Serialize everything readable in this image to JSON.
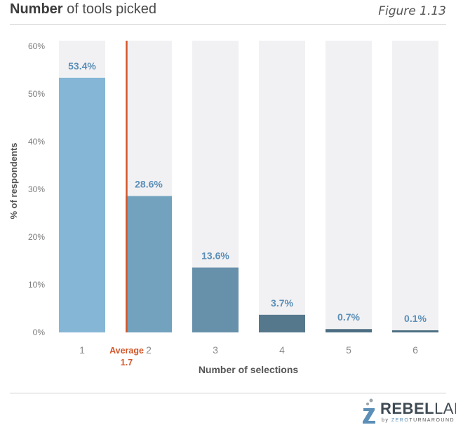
{
  "header": {
    "title_bold": "Number",
    "title_rest": " of tools picked",
    "figure_label": "Figure 1.13"
  },
  "chart_data": {
    "type": "bar",
    "categories": [
      "1",
      "2",
      "3",
      "4",
      "5",
      "6"
    ],
    "values": [
      53.4,
      28.6,
      13.6,
      3.7,
      0.7,
      0.1
    ],
    "value_labels": [
      "53.4%",
      "28.6%",
      "13.6%",
      "3.7%",
      "0.7%",
      "0.1%"
    ],
    "bar_colors": [
      "#85b6d6",
      "#72a2bd",
      "#6790aa",
      "#56788c",
      "#4d6e82",
      "#4d6e82"
    ],
    "label_color": "#5b8fb7",
    "background_bar_color": "#f1f1f3",
    "ylim": [
      0,
      60
    ],
    "yticks": [
      0,
      10,
      20,
      30,
      40,
      50,
      60
    ],
    "ytick_labels": [
      "0%",
      "10%",
      "20%",
      "30%",
      "40%",
      "50%",
      "60%"
    ],
    "xlabel": "Number of selections",
    "ylabel": "% of respondents",
    "average": {
      "value": 1.7,
      "label_line1": "Average",
      "label_line2": "1.7",
      "color": "#d4572a"
    },
    "grid": false
  },
  "footer": {
    "logo_brand_bold": "REBEL",
    "logo_brand_light": "LABS",
    "logo_sub_prefix": "by ",
    "logo_sub_z": "ZERO",
    "logo_sub_rest": "TURNAROUND"
  }
}
